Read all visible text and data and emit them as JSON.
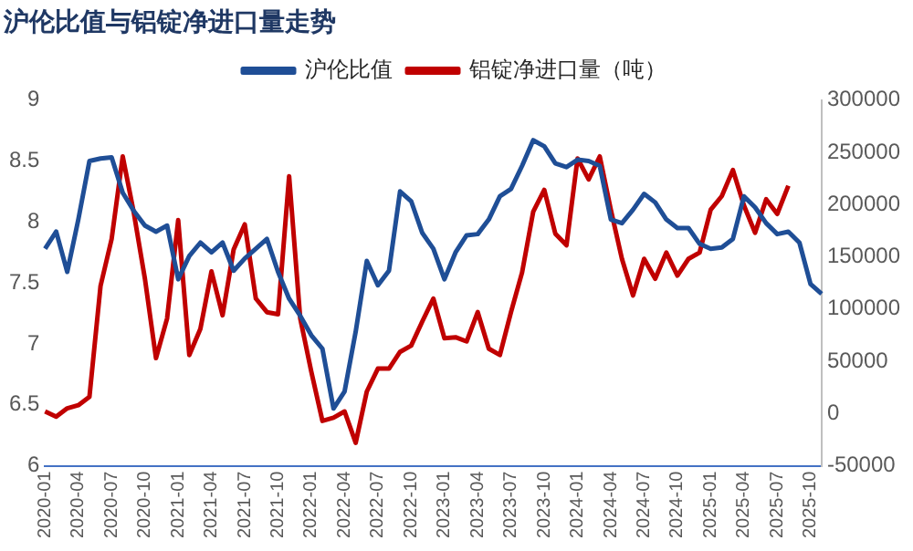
{
  "chart_data": {
    "type": "line",
    "title": "沪伦比值与铝锭净进口量走势",
    "categories": [
      "2020-01",
      null,
      null,
      "2020-04",
      null,
      null,
      "2020-07",
      null,
      null,
      "2020-10",
      null,
      null,
      "2021-01",
      null,
      null,
      "2021-04",
      null,
      null,
      "2021-07",
      null,
      null,
      "2021-10",
      null,
      null,
      "2022-01",
      null,
      null,
      "2022-04",
      null,
      null,
      "2022-07",
      null,
      null,
      "2022-10",
      null,
      null,
      "2023-01",
      null,
      null,
      "2023-04",
      null,
      null,
      "2023-07",
      null,
      null,
      "2023-10",
      null,
      null,
      "2024-01",
      null,
      null,
      "2024-04",
      null,
      null,
      "2024-07",
      null,
      null,
      "2024-10",
      null,
      null,
      "2025-01",
      null,
      null,
      "2025-04",
      null,
      null,
      "2025-07",
      null,
      null,
      "2025-10",
      null
    ],
    "series": [
      {
        "name": "沪伦比值",
        "color": "#1f4e96",
        "values": [
          7.78,
          7.92,
          7.59,
          8.02,
          8.5,
          8.52,
          8.53,
          8.24,
          8.09,
          7.97,
          7.92,
          7.97,
          7.53,
          7.72,
          7.83,
          7.75,
          7.83,
          7.6,
          7.7,
          7.78,
          7.86,
          7.59,
          7.37,
          7.23,
          7.07,
          6.96,
          6.47,
          6.61,
          7.1,
          7.68,
          7.48,
          7.6,
          8.25,
          8.17,
          7.91,
          7.78,
          7.53,
          7.75,
          7.89,
          7.9,
          8.02,
          8.21,
          8.27,
          8.46,
          8.67,
          8.62,
          8.48,
          8.45,
          8.51,
          8.5,
          8.46,
          8.02,
          7.99,
          8.1,
          8.23,
          8.16,
          8.02,
          7.95,
          7.95,
          7.82,
          7.78,
          7.79,
          7.86,
          8.21,
          8.12,
          7.99,
          7.9,
          7.92,
          7.83,
          7.49,
          7.41
        ]
      },
      {
        "name": "铝锭净进口量（吨）",
        "color": "#c00000",
        "axis": "y2",
        "values": [
          2000,
          -3000,
          5000,
          8000,
          16000,
          122000,
          167000,
          246000,
          192000,
          129000,
          53000,
          91000,
          185000,
          56000,
          81000,
          136000,
          94000,
          157000,
          181000,
          110000,
          97000,
          95000,
          227000,
          91000,
          40000,
          -7000,
          -4000,
          2000,
          -28000,
          21000,
          43000,
          43000,
          59000,
          65000,
          88000,
          110000,
          72000,
          73000,
          69000,
          97000,
          62000,
          56000,
          97000,
          135000,
          193000,
          214000,
          172000,
          161000,
          244000,
          224000,
          246000,
          195000,
          148000,
          113000,
          148000,
          129000,
          154000,
          132000,
          148000,
          154000,
          195000,
          208000,
          233000,
          199000,
          173000,
          205000,
          191000,
          218000,
          null,
          null,
          null
        ]
      }
    ],
    "ylim": [
      6,
      9
    ],
    "yticks": [
      6,
      6.5,
      7,
      7.5,
      8,
      8.5,
      9
    ],
    "y2lim": [
      -50000,
      300000
    ],
    "y2ticks": [
      -50000,
      0,
      50000,
      100000,
      150000,
      200000,
      250000,
      300000
    ],
    "legend": "top",
    "grid": false,
    "marker": "none",
    "line_style": "solid"
  }
}
